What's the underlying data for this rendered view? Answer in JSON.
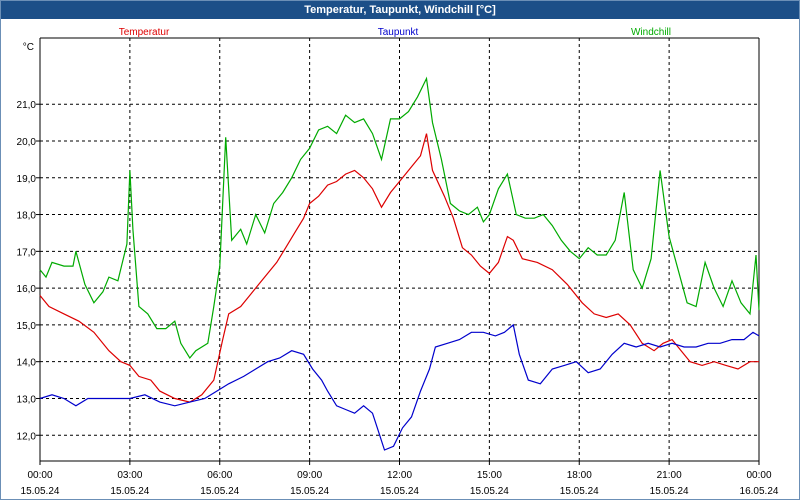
{
  "window": {
    "title": "Temperatur, Taupunkt, Windchill [°C]"
  },
  "chart_data": {
    "type": "line",
    "title": "Temperatur, Taupunkt, Windchill [°C]",
    "ylabel": "°C",
    "ylim": [
      11.3,
      22.8
    ],
    "yticks": [
      "21,0",
      "20,0",
      "19,0",
      "18,0",
      "17,0",
      "16,0",
      "15,0",
      "14,0",
      "13,0",
      "12,0"
    ],
    "ytick_values": [
      21,
      20,
      19,
      18,
      17,
      16,
      15,
      14,
      13,
      12
    ],
    "xlim": [
      0,
      24
    ],
    "xticks": [
      {
        "time": "00:00",
        "date": "15.05.24"
      },
      {
        "time": "03:00",
        "date": "15.05.24"
      },
      {
        "time": "06:00",
        "date": "15.05.24"
      },
      {
        "time": "09:00",
        "date": "15.05.24"
      },
      {
        "time": "12:00",
        "date": "15.05.24"
      },
      {
        "time": "15:00",
        "date": "15.05.24"
      },
      {
        "time": "18:00",
        "date": "15.05.24"
      },
      {
        "time": "21:00",
        "date": "15.05.24"
      },
      {
        "time": "00:00",
        "date": "16.05.24"
      }
    ],
    "xtick_values": [
      0,
      3,
      6,
      9,
      12,
      15,
      18,
      21,
      24
    ],
    "grid": true,
    "legend": "top",
    "series": [
      {
        "name": "Temperatur",
        "color": "#dd0000",
        "points": [
          [
            0,
            15.8
          ],
          [
            0.3,
            15.5
          ],
          [
            0.8,
            15.3
          ],
          [
            1.3,
            15.1
          ],
          [
            1.8,
            14.8
          ],
          [
            2.3,
            14.3
          ],
          [
            2.7,
            14.0
          ],
          [
            3.0,
            13.9
          ],
          [
            3.3,
            13.6
          ],
          [
            3.7,
            13.5
          ],
          [
            4.0,
            13.2
          ],
          [
            4.5,
            13.0
          ],
          [
            5.0,
            12.9
          ],
          [
            5.4,
            13.1
          ],
          [
            5.8,
            13.5
          ],
          [
            6.1,
            14.6
          ],
          [
            6.3,
            15.3
          ],
          [
            6.7,
            15.5
          ],
          [
            7.0,
            15.8
          ],
          [
            7.3,
            16.1
          ],
          [
            7.6,
            16.4
          ],
          [
            7.9,
            16.7
          ],
          [
            8.2,
            17.1
          ],
          [
            8.5,
            17.5
          ],
          [
            8.8,
            17.9
          ],
          [
            9.0,
            18.3
          ],
          [
            9.3,
            18.5
          ],
          [
            9.6,
            18.8
          ],
          [
            9.9,
            18.9
          ],
          [
            10.2,
            19.1
          ],
          [
            10.5,
            19.2
          ],
          [
            10.8,
            19.0
          ],
          [
            11.1,
            18.7
          ],
          [
            11.4,
            18.2
          ],
          [
            11.7,
            18.6
          ],
          [
            12.0,
            18.9
          ],
          [
            12.4,
            19.3
          ],
          [
            12.7,
            19.6
          ],
          [
            12.9,
            20.2
          ],
          [
            13.1,
            19.2
          ],
          [
            13.5,
            18.5
          ],
          [
            13.8,
            17.9
          ],
          [
            14.1,
            17.1
          ],
          [
            14.4,
            16.9
          ],
          [
            14.7,
            16.6
          ],
          [
            15.0,
            16.4
          ],
          [
            15.3,
            16.7
          ],
          [
            15.6,
            17.4
          ],
          [
            15.8,
            17.3
          ],
          [
            16.1,
            16.8
          ],
          [
            16.6,
            16.7
          ],
          [
            17.1,
            16.5
          ],
          [
            17.6,
            16.1
          ],
          [
            18.1,
            15.6
          ],
          [
            18.5,
            15.3
          ],
          [
            18.9,
            15.2
          ],
          [
            19.3,
            15.3
          ],
          [
            19.7,
            15.0
          ],
          [
            20.1,
            14.5
          ],
          [
            20.5,
            14.3
          ],
          [
            20.8,
            14.5
          ],
          [
            21.1,
            14.6
          ],
          [
            21.4,
            14.3
          ],
          [
            21.7,
            14.0
          ],
          [
            22.1,
            13.9
          ],
          [
            22.5,
            14.0
          ],
          [
            22.9,
            13.9
          ],
          [
            23.3,
            13.8
          ],
          [
            23.7,
            14.0
          ],
          [
            24.0,
            14.0
          ]
        ]
      },
      {
        "name": "Taupunkt",
        "color": "#0000cc",
        "points": [
          [
            0,
            13.0
          ],
          [
            0.4,
            13.1
          ],
          [
            0.8,
            13.0
          ],
          [
            1.2,
            12.8
          ],
          [
            1.6,
            13.0
          ],
          [
            2.0,
            13.0
          ],
          [
            2.5,
            13.0
          ],
          [
            3.0,
            13.0
          ],
          [
            3.5,
            13.1
          ],
          [
            4.0,
            12.9
          ],
          [
            4.5,
            12.8
          ],
          [
            5.0,
            12.9
          ],
          [
            5.5,
            13.0
          ],
          [
            5.9,
            13.2
          ],
          [
            6.3,
            13.4
          ],
          [
            6.8,
            13.6
          ],
          [
            7.2,
            13.8
          ],
          [
            7.6,
            14.0
          ],
          [
            8.0,
            14.1
          ],
          [
            8.4,
            14.3
          ],
          [
            8.8,
            14.2
          ],
          [
            9.1,
            13.8
          ],
          [
            9.4,
            13.5
          ],
          [
            9.6,
            13.2
          ],
          [
            9.9,
            12.8
          ],
          [
            10.2,
            12.7
          ],
          [
            10.5,
            12.6
          ],
          [
            10.8,
            12.8
          ],
          [
            11.1,
            12.6
          ],
          [
            11.3,
            12.1
          ],
          [
            11.5,
            11.6
          ],
          [
            11.8,
            11.7
          ],
          [
            12.1,
            12.2
          ],
          [
            12.4,
            12.5
          ],
          [
            12.7,
            13.2
          ],
          [
            13.0,
            13.8
          ],
          [
            13.2,
            14.4
          ],
          [
            13.6,
            14.5
          ],
          [
            14.0,
            14.6
          ],
          [
            14.4,
            14.8
          ],
          [
            14.8,
            14.8
          ],
          [
            15.2,
            14.7
          ],
          [
            15.5,
            14.8
          ],
          [
            15.8,
            15.0
          ],
          [
            16.0,
            14.2
          ],
          [
            16.3,
            13.5
          ],
          [
            16.7,
            13.4
          ],
          [
            17.1,
            13.8
          ],
          [
            17.5,
            13.9
          ],
          [
            17.9,
            14.0
          ],
          [
            18.3,
            13.7
          ],
          [
            18.7,
            13.8
          ],
          [
            19.1,
            14.2
          ],
          [
            19.5,
            14.5
          ],
          [
            19.9,
            14.4
          ],
          [
            20.3,
            14.5
          ],
          [
            20.7,
            14.4
          ],
          [
            21.1,
            14.5
          ],
          [
            21.5,
            14.4
          ],
          [
            21.9,
            14.4
          ],
          [
            22.3,
            14.5
          ],
          [
            22.7,
            14.5
          ],
          [
            23.1,
            14.6
          ],
          [
            23.5,
            14.6
          ],
          [
            23.8,
            14.8
          ],
          [
            24.0,
            14.7
          ]
        ]
      },
      {
        "name": "Windchill",
        "color": "#00aa00",
        "points": [
          [
            0,
            16.5
          ],
          [
            0.2,
            16.3
          ],
          [
            0.4,
            16.7
          ],
          [
            0.8,
            16.6
          ],
          [
            1.1,
            16.6
          ],
          [
            1.2,
            17.0
          ],
          [
            1.5,
            16.1
          ],
          [
            1.8,
            15.6
          ],
          [
            2.1,
            15.9
          ],
          [
            2.3,
            16.3
          ],
          [
            2.6,
            16.2
          ],
          [
            2.9,
            17.2
          ],
          [
            3.0,
            19.2
          ],
          [
            3.1,
            17.6
          ],
          [
            3.3,
            15.5
          ],
          [
            3.6,
            15.3
          ],
          [
            3.9,
            14.9
          ],
          [
            4.2,
            14.9
          ],
          [
            4.5,
            15.1
          ],
          [
            4.7,
            14.5
          ],
          [
            5.0,
            14.1
          ],
          [
            5.2,
            14.3
          ],
          [
            5.6,
            14.5
          ],
          [
            5.8,
            15.5
          ],
          [
            6.0,
            16.6
          ],
          [
            6.2,
            20.1
          ],
          [
            6.4,
            17.3
          ],
          [
            6.7,
            17.6
          ],
          [
            6.9,
            17.2
          ],
          [
            7.2,
            18.0
          ],
          [
            7.5,
            17.5
          ],
          [
            7.8,
            18.3
          ],
          [
            8.1,
            18.6
          ],
          [
            8.4,
            19.0
          ],
          [
            8.7,
            19.5
          ],
          [
            9.0,
            19.8
          ],
          [
            9.3,
            20.3
          ],
          [
            9.6,
            20.4
          ],
          [
            9.9,
            20.2
          ],
          [
            10.2,
            20.7
          ],
          [
            10.5,
            20.5
          ],
          [
            10.8,
            20.6
          ],
          [
            11.1,
            20.2
          ],
          [
            11.4,
            19.5
          ],
          [
            11.7,
            20.6
          ],
          [
            12.0,
            20.6
          ],
          [
            12.3,
            20.8
          ],
          [
            12.6,
            21.2
          ],
          [
            12.9,
            21.7
          ],
          [
            13.1,
            20.5
          ],
          [
            13.4,
            19.5
          ],
          [
            13.7,
            18.3
          ],
          [
            14.0,
            18.1
          ],
          [
            14.3,
            18.0
          ],
          [
            14.6,
            18.2
          ],
          [
            14.8,
            17.8
          ],
          [
            15.0,
            18.0
          ],
          [
            15.3,
            18.7
          ],
          [
            15.6,
            19.1
          ],
          [
            15.9,
            18.0
          ],
          [
            16.2,
            17.9
          ],
          [
            16.5,
            17.9
          ],
          [
            16.8,
            18.0
          ],
          [
            17.1,
            17.7
          ],
          [
            17.4,
            17.3
          ],
          [
            17.7,
            17.0
          ],
          [
            18.0,
            16.8
          ],
          [
            18.3,
            17.1
          ],
          [
            18.6,
            16.9
          ],
          [
            18.9,
            16.9
          ],
          [
            19.2,
            17.3
          ],
          [
            19.5,
            18.6
          ],
          [
            19.8,
            16.5
          ],
          [
            20.1,
            16.0
          ],
          [
            20.4,
            16.8
          ],
          [
            20.7,
            19.2
          ],
          [
            21.0,
            17.4
          ],
          [
            21.3,
            16.5
          ],
          [
            21.6,
            15.6
          ],
          [
            21.9,
            15.5
          ],
          [
            22.2,
            16.7
          ],
          [
            22.5,
            16.0
          ],
          [
            22.8,
            15.5
          ],
          [
            23.1,
            16.2
          ],
          [
            23.4,
            15.6
          ],
          [
            23.7,
            15.3
          ],
          [
            23.9,
            16.9
          ],
          [
            24.0,
            15.4
          ]
        ]
      }
    ]
  }
}
